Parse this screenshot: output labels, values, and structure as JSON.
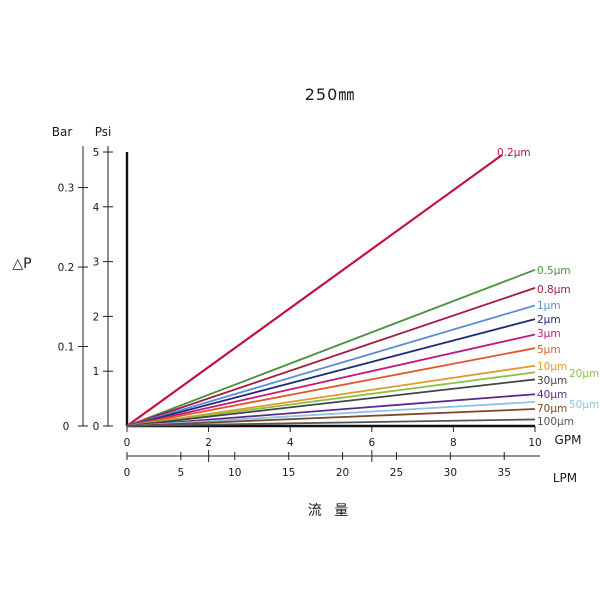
{
  "chart_data": {
    "type": "line",
    "title": "250㎜",
    "ylabel": "△P",
    "xlabel": "流 量",
    "y_axes": {
      "bar": {
        "label": "Bar",
        "ticks": [
          "0.3",
          "0.2",
          "0.1",
          "0"
        ],
        "tick_values": [
          0.3,
          0.2,
          0.1,
          0
        ]
      },
      "psi": {
        "label": "Psi",
        "ticks": [
          "5",
          "4",
          "3",
          "2",
          "1",
          "0"
        ],
        "tick_values": [
          5,
          4,
          3,
          2,
          1,
          0
        ],
        "ylim": [
          0,
          5
        ]
      }
    },
    "x_axes": {
      "gpm": {
        "label": "GPM",
        "ticks": [
          "0",
          "2",
          "4",
          "6",
          "8",
          "10"
        ],
        "tick_values": [
          0,
          2,
          4,
          6,
          8,
          10
        ],
        "xlim": [
          0,
          10
        ]
      },
      "lpm": {
        "label": "LPM",
        "ticks": [
          "0",
          "5",
          "10",
          "15",
          "20",
          "25",
          "30",
          "35"
        ],
        "tick_values": [
          0,
          5,
          10,
          15,
          20,
          25,
          30,
          35
        ]
      }
    },
    "grid": false,
    "legend": "inline labels at line ends",
    "series": [
      {
        "name": "0.2μm",
        "color": "#c0143c",
        "x": [
          0,
          9.2
        ],
        "y": [
          0,
          4.95
        ]
      },
      {
        "name": "0.5μm",
        "color": "#4a9140",
        "x": [
          0,
          10
        ],
        "y": [
          0,
          2.85
        ]
      },
      {
        "name": "0.8μm",
        "color": "#a51840",
        "x": [
          0,
          10
        ],
        "y": [
          0,
          2.52
        ]
      },
      {
        "name": "1μm",
        "color": "#5a8ed0",
        "x": [
          0,
          10
        ],
        "y": [
          0,
          2.2
        ]
      },
      {
        "name": "2μm",
        "color": "#1f2a78",
        "x": [
          0,
          10
        ],
        "y": [
          0,
          1.95
        ]
      },
      {
        "name": "3μm",
        "color": "#c2197c",
        "x": [
          0,
          10
        ],
        "y": [
          0,
          1.67
        ]
      },
      {
        "name": "5μm",
        "color": "#e0582a",
        "x": [
          0,
          10
        ],
        "y": [
          0,
          1.42
        ]
      },
      {
        "name": "10μm",
        "color": "#e39a2c",
        "x": [
          0,
          10
        ],
        "y": [
          0,
          1.1
        ]
      },
      {
        "name": "20μm",
        "color": "#8bc04a",
        "x": [
          0,
          10
        ],
        "y": [
          0,
          0.98
        ]
      },
      {
        "name": "30μm",
        "color": "#444444",
        "x": [
          0,
          10
        ],
        "y": [
          0,
          0.85
        ]
      },
      {
        "name": "40μm",
        "color": "#5a2a8a",
        "x": [
          0,
          10
        ],
        "y": [
          0,
          0.58
        ]
      },
      {
        "name": "50μm",
        "color": "#8ec3e4",
        "x": [
          0,
          10
        ],
        "y": [
          0,
          0.44
        ]
      },
      {
        "name": "70μm",
        "color": "#7a4a2a",
        "x": [
          0,
          10
        ],
        "y": [
          0,
          0.31
        ]
      },
      {
        "name": "100μm",
        "color": "#555555",
        "x": [
          0,
          10
        ],
        "y": [
          0,
          0.12
        ]
      }
    ]
  }
}
